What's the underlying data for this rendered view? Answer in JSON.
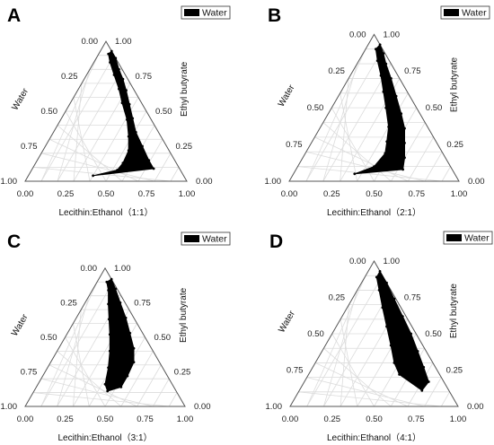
{
  "chart_data": [
    {
      "type": "ternary-area",
      "panel": "A",
      "axes": {
        "left": "Water",
        "right": "Ethyl butyrate",
        "bottom": "Lecithin:Ethanol（1:1）"
      },
      "ticks": [
        "0.00",
        "0.25",
        "0.50",
        "0.75",
        "1.00"
      ],
      "legend": "Water",
      "grid": true,
      "points": [
        {
          "ethyl_butyrate": 0.93,
          "lecithin_ethanol": 0.07,
          "water": 0.0
        },
        {
          "ethyl_butyrate": 0.88,
          "lecithin_ethanol": 0.12,
          "water": 0.0
        },
        {
          "ethyl_butyrate": 0.8,
          "lecithin_ethanol": 0.18,
          "water": 0.02
        },
        {
          "ethyl_butyrate": 0.73,
          "lecithin_ethanol": 0.24,
          "water": 0.03
        },
        {
          "ethyl_butyrate": 0.65,
          "lecithin_ethanol": 0.3,
          "water": 0.05
        },
        {
          "ethyl_butyrate": 0.55,
          "lecithin_ethanol": 0.37,
          "water": 0.08
        },
        {
          "ethyl_butyrate": 0.45,
          "lecithin_ethanol": 0.44,
          "water": 0.11
        },
        {
          "ethyl_butyrate": 0.35,
          "lecithin_ethanol": 0.51,
          "water": 0.14
        },
        {
          "ethyl_butyrate": 0.25,
          "lecithin_ethanol": 0.6,
          "water": 0.15
        },
        {
          "ethyl_butyrate": 0.15,
          "lecithin_ethanol": 0.69,
          "water": 0.16
        },
        {
          "ethyl_butyrate": 0.09,
          "lecithin_ethanol": 0.75,
          "water": 0.16
        },
        {
          "ethyl_butyrate": 0.04,
          "lecithin_ethanol": 0.4,
          "water": 0.56
        },
        {
          "ethyl_butyrate": 0.08,
          "lecithin_ethanol": 0.53,
          "water": 0.39
        },
        {
          "ethyl_butyrate": 0.13,
          "lecithin_ethanol": 0.54,
          "water": 0.33
        },
        {
          "ethyl_butyrate": 0.22,
          "lecithin_ethanol": 0.53,
          "water": 0.25
        },
        {
          "ethyl_butyrate": 0.32,
          "lecithin_ethanol": 0.48,
          "water": 0.2
        },
        {
          "ethyl_butyrate": 0.44,
          "lecithin_ethanol": 0.41,
          "water": 0.15
        },
        {
          "ethyl_butyrate": 0.56,
          "lecithin_ethanol": 0.32,
          "water": 0.12
        },
        {
          "ethyl_butyrate": 0.66,
          "lecithin_ethanol": 0.25,
          "water": 0.09
        },
        {
          "ethyl_butyrate": 0.76,
          "lecithin_ethanol": 0.17,
          "water": 0.07
        },
        {
          "ethyl_butyrate": 0.85,
          "lecithin_ethanol": 0.1,
          "water": 0.05
        },
        {
          "ethyl_butyrate": 0.91,
          "lecithin_ethanol": 0.06,
          "water": 0.03
        }
      ]
    },
    {
      "type": "ternary-area",
      "panel": "B",
      "axes": {
        "left": "Water",
        "right": "Ethyl butyrate",
        "bottom": "Lecithin:Ethanol（2:1）"
      },
      "ticks": [
        "0.00",
        "0.25",
        "0.50",
        "0.75",
        "1.00"
      ],
      "legend": "Water",
      "grid": true,
      "points": [
        {
          "ethyl_butyrate": 0.93,
          "lecithin_ethanol": 0.07,
          "water": 0.0
        },
        {
          "ethyl_butyrate": 0.87,
          "lecithin_ethanol": 0.12,
          "water": 0.01
        },
        {
          "ethyl_butyrate": 0.8,
          "lecithin_ethanol": 0.17,
          "water": 0.03
        },
        {
          "ethyl_butyrate": 0.7,
          "lecithin_ethanol": 0.25,
          "water": 0.05
        },
        {
          "ethyl_butyrate": 0.58,
          "lecithin_ethanol": 0.34,
          "water": 0.08
        },
        {
          "ethyl_butyrate": 0.46,
          "lecithin_ethanol": 0.43,
          "water": 0.11
        },
        {
          "ethyl_butyrate": 0.36,
          "lecithin_ethanol": 0.5,
          "water": 0.14
        },
        {
          "ethyl_butyrate": 0.26,
          "lecithin_ethanol": 0.55,
          "water": 0.19
        },
        {
          "ethyl_butyrate": 0.16,
          "lecithin_ethanol": 0.6,
          "water": 0.24
        },
        {
          "ethyl_butyrate": 0.08,
          "lecithin_ethanol": 0.63,
          "water": 0.29
        },
        {
          "ethyl_butyrate": 0.05,
          "lecithin_ethanol": 0.36,
          "water": 0.59
        },
        {
          "ethyl_butyrate": 0.1,
          "lecithin_ethanol": 0.45,
          "water": 0.45
        },
        {
          "ethyl_butyrate": 0.19,
          "lecithin_ethanol": 0.47,
          "water": 0.34
        },
        {
          "ethyl_butyrate": 0.27,
          "lecithin_ethanol": 0.44,
          "water": 0.29
        },
        {
          "ethyl_butyrate": 0.37,
          "lecithin_ethanol": 0.4,
          "water": 0.23
        },
        {
          "ethyl_butyrate": 0.5,
          "lecithin_ethanol": 0.32,
          "water": 0.18
        },
        {
          "ethyl_butyrate": 0.61,
          "lecithin_ethanol": 0.25,
          "water": 0.14
        },
        {
          "ethyl_butyrate": 0.72,
          "lecithin_ethanol": 0.18,
          "water": 0.1
        },
        {
          "ethyl_butyrate": 0.82,
          "lecithin_ethanol": 0.11,
          "water": 0.07
        },
        {
          "ethyl_butyrate": 0.9,
          "lecithin_ethanol": 0.06,
          "water": 0.04
        }
      ]
    },
    {
      "type": "ternary-area",
      "panel": "C",
      "axes": {
        "left": "Water",
        "right": "Ethyl butyrate",
        "bottom": "Lecithin:Ethanol（3:1）"
      },
      "ticks": [
        "0.00",
        "0.25",
        "0.50",
        "0.75",
        "1.00"
      ],
      "legend": "Water",
      "grid": true,
      "points": [
        {
          "ethyl_butyrate": 0.92,
          "lecithin_ethanol": 0.08,
          "water": 0.0
        },
        {
          "ethyl_butyrate": 0.85,
          "lecithin_ethanol": 0.14,
          "water": 0.01
        },
        {
          "ethyl_butyrate": 0.75,
          "lecithin_ethanol": 0.22,
          "water": 0.03
        },
        {
          "ethyl_butyrate": 0.64,
          "lecithin_ethanol": 0.31,
          "water": 0.05
        },
        {
          "ethyl_butyrate": 0.53,
          "lecithin_ethanol": 0.39,
          "water": 0.08
        },
        {
          "ethyl_butyrate": 0.42,
          "lecithin_ethanol": 0.47,
          "water": 0.11
        },
        {
          "ethyl_butyrate": 0.32,
          "lecithin_ethanol": 0.52,
          "water": 0.16
        },
        {
          "ethyl_butyrate": 0.22,
          "lecithin_ethanol": 0.53,
          "water": 0.25
        },
        {
          "ethyl_butyrate": 0.14,
          "lecithin_ethanol": 0.53,
          "water": 0.33
        },
        {
          "ethyl_butyrate": 0.11,
          "lecithin_ethanol": 0.46,
          "water": 0.43
        },
        {
          "ethyl_butyrate": 0.16,
          "lecithin_ethanol": 0.42,
          "water": 0.42
        },
        {
          "ethyl_butyrate": 0.28,
          "lecithin_ethanol": 0.38,
          "water": 0.34
        },
        {
          "ethyl_butyrate": 0.4,
          "lecithin_ethanol": 0.33,
          "water": 0.27
        },
        {
          "ethyl_butyrate": 0.52,
          "lecithin_ethanol": 0.27,
          "water": 0.21
        },
        {
          "ethyl_butyrate": 0.63,
          "lecithin_ethanol": 0.21,
          "water": 0.16
        },
        {
          "ethyl_butyrate": 0.74,
          "lecithin_ethanol": 0.15,
          "water": 0.11
        },
        {
          "ethyl_butyrate": 0.84,
          "lecithin_ethanol": 0.1,
          "water": 0.06
        },
        {
          "ethyl_butyrate": 0.9,
          "lecithin_ethanol": 0.06,
          "water": 0.04
        }
      ]
    },
    {
      "type": "ternary-area",
      "panel": "D",
      "axes": {
        "left": "Water",
        "right": "Ethyl butyrate",
        "bottom": "Lecithin:Ethanol（4:1）"
      },
      "ticks": [
        "0.00",
        "0.25",
        "0.50",
        "0.75",
        "1.00"
      ],
      "legend": "Water",
      "grid": true,
      "points": [
        {
          "ethyl_butyrate": 0.93,
          "lecithin_ethanol": 0.07,
          "water": 0.0
        },
        {
          "ethyl_butyrate": 0.85,
          "lecithin_ethanol": 0.15,
          "water": 0.0
        },
        {
          "ethyl_butyrate": 0.74,
          "lecithin_ethanol": 0.25,
          "water": 0.01
        },
        {
          "ethyl_butyrate": 0.62,
          "lecithin_ethanol": 0.36,
          "water": 0.02
        },
        {
          "ethyl_butyrate": 0.5,
          "lecithin_ethanol": 0.47,
          "water": 0.03
        },
        {
          "ethyl_butyrate": 0.38,
          "lecithin_ethanol": 0.57,
          "water": 0.05
        },
        {
          "ethyl_butyrate": 0.27,
          "lecithin_ethanol": 0.66,
          "water": 0.07
        },
        {
          "ethyl_butyrate": 0.17,
          "lecithin_ethanol": 0.74,
          "water": 0.09
        },
        {
          "ethyl_butyrate": 0.11,
          "lecithin_ethanol": 0.73,
          "water": 0.16
        },
        {
          "ethyl_butyrate": 0.22,
          "lecithin_ethanol": 0.54,
          "water": 0.24
        },
        {
          "ethyl_butyrate": 0.3,
          "lecithin_ethanol": 0.47,
          "water": 0.23
        },
        {
          "ethyl_butyrate": 0.42,
          "lecithin_ethanol": 0.39,
          "water": 0.19
        },
        {
          "ethyl_butyrate": 0.55,
          "lecithin_ethanol": 0.3,
          "water": 0.15
        },
        {
          "ethyl_butyrate": 0.68,
          "lecithin_ethanol": 0.21,
          "water": 0.11
        },
        {
          "ethyl_butyrate": 0.8,
          "lecithin_ethanol": 0.13,
          "water": 0.07
        },
        {
          "ethyl_butyrate": 0.89,
          "lecithin_ethanol": 0.07,
          "water": 0.04
        }
      ]
    }
  ]
}
